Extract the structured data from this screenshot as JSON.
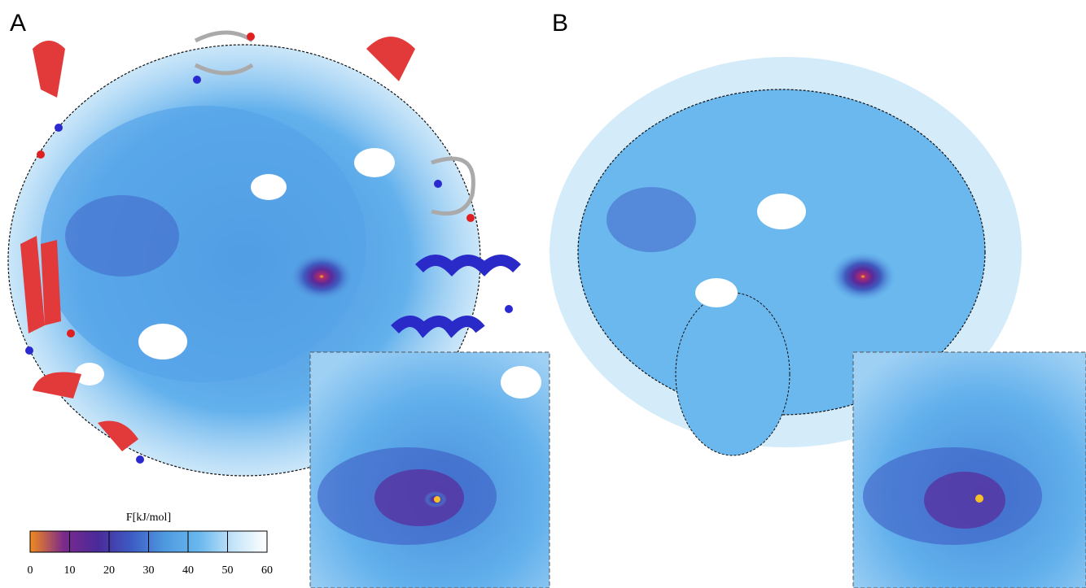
{
  "panels": [
    {
      "label": "A"
    },
    {
      "label": "B"
    }
  ],
  "colorbar": {
    "title": "F[kJ/mol]",
    "lim": [
      0,
      60
    ],
    "ticks": [
      0,
      10,
      20,
      30,
      40,
      50,
      60
    ],
    "colors": [
      "#f28a1e",
      "#7a2a8c",
      "#4a2a9a",
      "#3d5cc4",
      "#4f9ae0",
      "#6ab8ee",
      "#c4e4f8",
      "#ffffff"
    ]
  }
}
